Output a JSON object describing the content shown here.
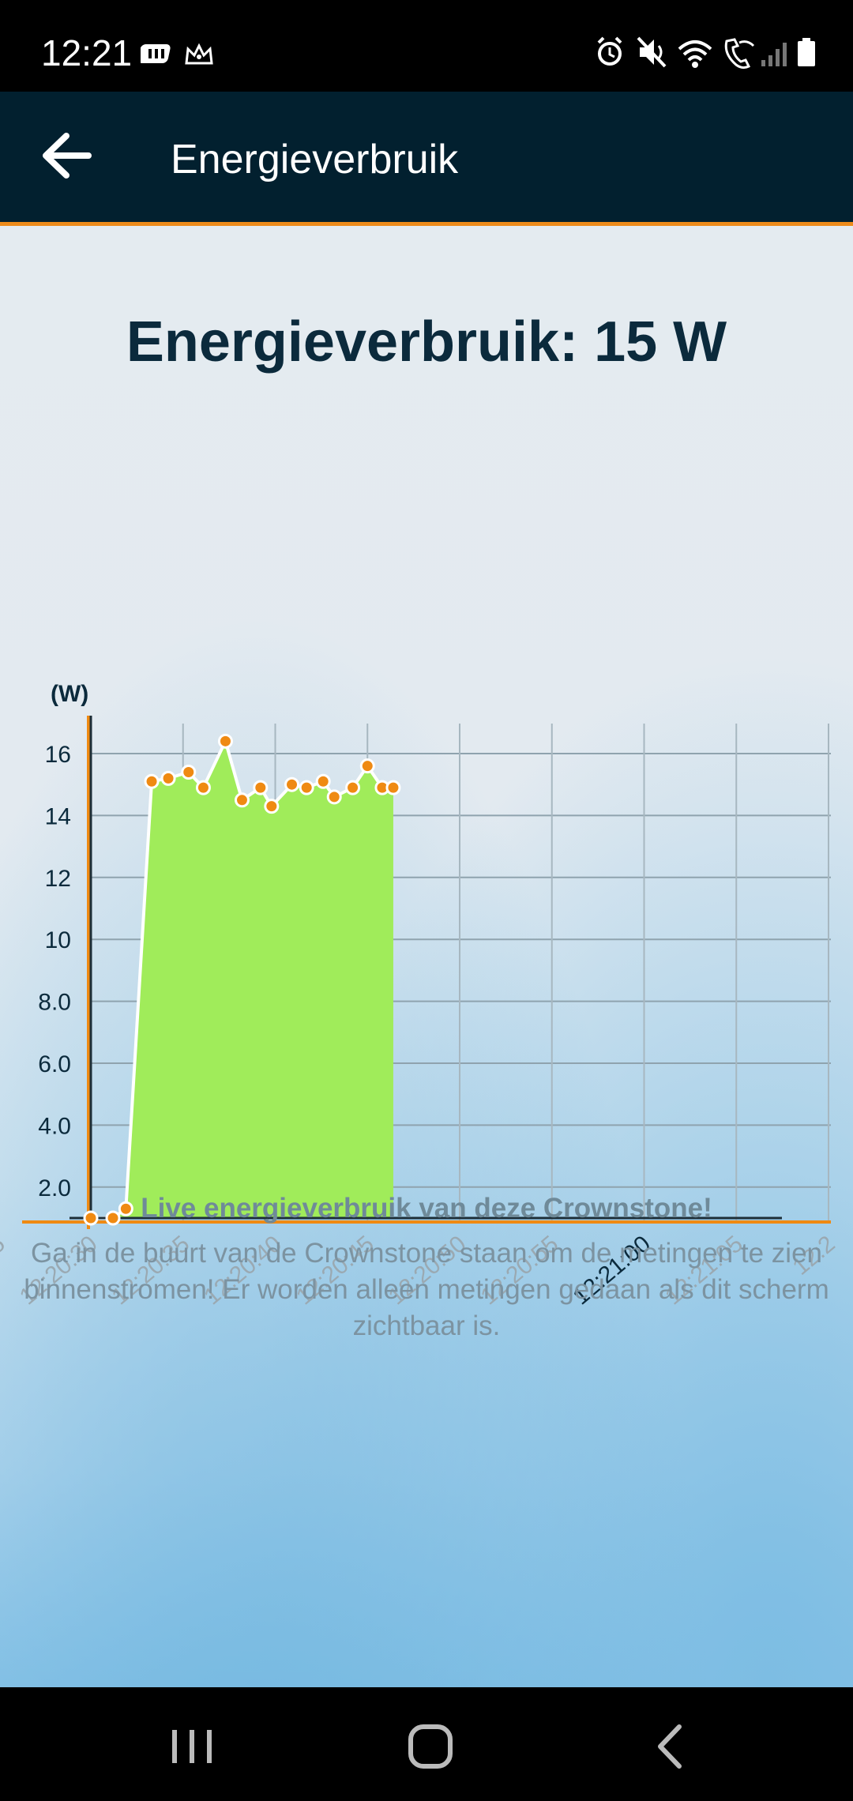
{
  "status_bar": {
    "time": "12:21",
    "left_icons": [
      "network-badge-icon",
      "crown-icon"
    ],
    "right_icons": [
      "alarm-icon",
      "mute-icon",
      "wifi-icon",
      "wifi-call-icon",
      "signal-icon",
      "battery-icon"
    ]
  },
  "header": {
    "title": "Energieverbruik",
    "back_icon": "arrow-left-icon",
    "bg_color": "#02202f",
    "accent_color": "#ed8b1a"
  },
  "main": {
    "title": "Energieverbruik: 15 W",
    "description_title": "Live energieverbruik van deze Crownstone!",
    "description_text": "Ga in de buurt van de Crownstone staan om de metingen te zien binnenstromen! Er worden alleen metingen gedaan als dit scherm zichtbaar is."
  },
  "chart_data": {
    "type": "area",
    "ylabel": "(W)",
    "ylim": [
      1,
      16.5
    ],
    "y_ticks": [
      "2.0",
      "4.0",
      "6.0",
      "8.0",
      "10",
      "12",
      "14",
      "16"
    ],
    "x_ticks": [
      ":25",
      "12:20:30",
      "12:20:35",
      "12:20:40",
      "12:20:45",
      "12:20:50",
      "12:20:55",
      "12:21:00",
      "12:21:05",
      "12:2"
    ],
    "highlight_tick": "12:21:00",
    "grid": true,
    "fill_color": "#a0ec5a",
    "point_color": "#ef8a12",
    "axis_color": "#ef8a12",
    "series": [
      {
        "x": [
          30.0,
          31.2,
          31.9,
          33.3,
          34.2,
          35.3,
          36.1,
          37.3,
          38.2,
          39.2,
          39.8,
          40.9,
          41.7,
          42.6,
          43.2,
          44.2,
          45.0,
          45.8,
          46.4
        ],
        "values": [
          1.0,
          1.0,
          1.3,
          15.1,
          15.2,
          15.4,
          14.9,
          16.4,
          14.5,
          14.9,
          14.3,
          15.0,
          14.9,
          15.1,
          14.6,
          14.9,
          15.6,
          14.9,
          14.9
        ]
      }
    ]
  },
  "nav_bar": {
    "buttons": [
      "recent-apps-icon",
      "home-icon",
      "back-icon"
    ]
  }
}
